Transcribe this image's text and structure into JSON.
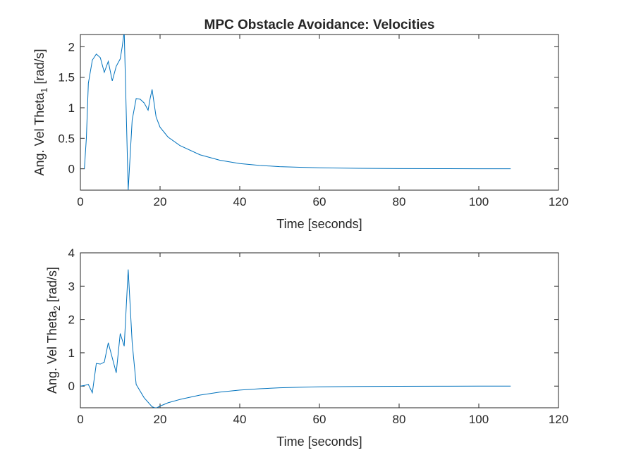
{
  "figure_title": "MPC Obstacle Avoidance: Velocities",
  "colors": {
    "series": "#0072BD",
    "axes": "#262626"
  },
  "chart_data": [
    {
      "type": "line",
      "title": "MPC Obstacle Avoidance: Velocities",
      "xlabel": "Time [seconds]",
      "ylabel_main": "Ang. Vel Theta",
      "ylabel_sub": "1",
      "ylabel_unit": " [rad/s]",
      "xlim": [
        0,
        120
      ],
      "ylim": [
        -0.35,
        2.2
      ],
      "xticks": [
        0,
        20,
        40,
        60,
        80,
        100,
        120
      ],
      "yticks": [
        0,
        0.5,
        1,
        1.5,
        2
      ],
      "ytick_labels": [
        "0",
        "0.5",
        "1",
        "1.5",
        "2"
      ],
      "grid": false,
      "series": [
        {
          "x": [
            1,
            1.5,
            2,
            3,
            4,
            5,
            6,
            7,
            8,
            9,
            10,
            10.5,
            11,
            12,
            13,
            14,
            15,
            16,
            17,
            17.5,
            18,
            19,
            20,
            22,
            25,
            30,
            35,
            40,
            45,
            50,
            55,
            60,
            70,
            80,
            90,
            100,
            108
          ],
          "y": [
            0,
            0.5,
            1.4,
            1.78,
            1.88,
            1.82,
            1.58,
            1.76,
            1.44,
            1.68,
            1.8,
            2.0,
            2.25,
            -0.35,
            0.8,
            1.15,
            1.14,
            1.08,
            0.96,
            1.15,
            1.3,
            0.85,
            0.68,
            0.52,
            0.38,
            0.23,
            0.14,
            0.085,
            0.055,
            0.035,
            0.025,
            0.017,
            0.008,
            0.004,
            0.002,
            0.001,
            0
          ]
        }
      ]
    },
    {
      "type": "line",
      "xlabel": "Time [seconds]",
      "ylabel_main": "Ang. Vel Theta",
      "ylabel_sub": "2",
      "ylabel_unit": " [rad/s]",
      "xlim": [
        0,
        120
      ],
      "ylim": [
        -0.65,
        4
      ],
      "xticks": [
        0,
        20,
        40,
        60,
        80,
        100,
        120
      ],
      "yticks": [
        0,
        1,
        2,
        3,
        4
      ],
      "ytick_labels": [
        "0",
        "1",
        "2",
        "3",
        "4"
      ],
      "grid": false,
      "series": [
        {
          "x": [
            0,
            1,
            2,
            3,
            4,
            5,
            6,
            7,
            8,
            9,
            10,
            11,
            12,
            13,
            14,
            16,
            18,
            19,
            20,
            22,
            25,
            30,
            35,
            40,
            45,
            50,
            55,
            60,
            70,
            80,
            90,
            100,
            108
          ],
          "y": [
            0,
            0.02,
            0.05,
            -0.2,
            0.68,
            0.66,
            0.72,
            1.3,
            0.85,
            0.4,
            1.58,
            1.2,
            3.5,
            1.3,
            0.05,
            -0.35,
            -0.62,
            -0.66,
            -0.6,
            -0.5,
            -0.4,
            -0.27,
            -0.18,
            -0.12,
            -0.08,
            -0.05,
            -0.035,
            -0.02,
            -0.01,
            -0.005,
            -0.003,
            -0.001,
            0
          ]
        }
      ]
    }
  ]
}
